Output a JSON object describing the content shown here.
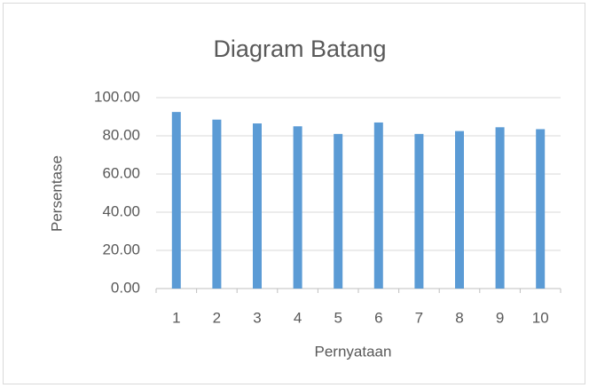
{
  "chart_data": {
    "type": "bar",
    "title": "Diagram Batang",
    "x_label": "Pernyataan",
    "y_label": "Persentase",
    "categories": [
      "1",
      "2",
      "3",
      "4",
      "5",
      "6",
      "7",
      "8",
      "9",
      "10"
    ],
    "values": [
      92.5,
      88.5,
      86.5,
      85,
      81,
      87,
      81,
      82.5,
      84.5,
      83.5
    ],
    "color": "#5b9bd5",
    "ylim": [
      0,
      100
    ],
    "yticks": [
      {
        "value": 0,
        "label": "0.00"
      },
      {
        "value": 20,
        "label": "20.00"
      },
      {
        "value": 40,
        "label": "40.00"
      },
      {
        "value": 60,
        "label": "60.00"
      },
      {
        "value": 80,
        "label": "80.00"
      },
      {
        "value": 100,
        "label": "100.00"
      }
    ],
    "grid": true
  }
}
